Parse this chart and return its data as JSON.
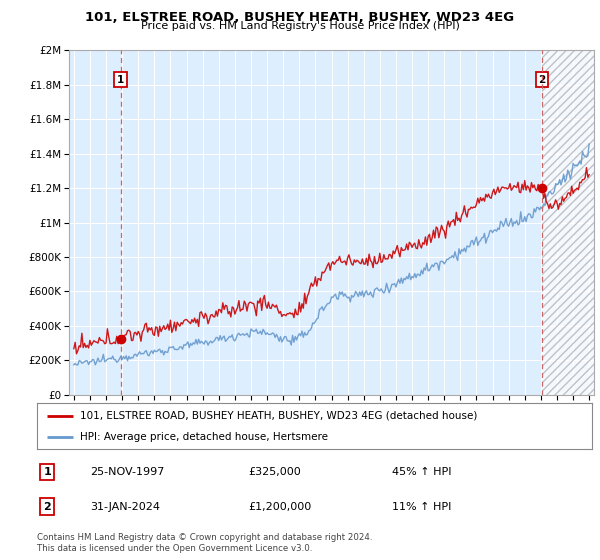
{
  "title": "101, ELSTREE ROAD, BUSHEY HEATH, BUSHEY, WD23 4EG",
  "subtitle": "Price paid vs. HM Land Registry's House Price Index (HPI)",
  "legend_line1": "101, ELSTREE ROAD, BUSHEY HEATH, BUSHEY, WD23 4EG (detached house)",
  "legend_line2": "HPI: Average price, detached house, Hertsmere",
  "annotation1_label": "1",
  "annotation1_date": "25-NOV-1997",
  "annotation1_price": "£325,000",
  "annotation1_hpi": "45% ↑ HPI",
  "annotation2_label": "2",
  "annotation2_date": "31-JAN-2024",
  "annotation2_price": "£1,200,000",
  "annotation2_hpi": "11% ↑ HPI",
  "footer": "Contains HM Land Registry data © Crown copyright and database right 2024.\nThis data is licensed under the Open Government Licence v3.0.",
  "price_color": "#cc0000",
  "hpi_color": "#6699cc",
  "chart_bg_color": "#ddeeff",
  "annotation_dot_color": "#cc0000",
  "vline_color": "#cc6666",
  "background_color": "#ffffff",
  "grid_color": "#ffffff",
  "ylim": [
    0,
    2000000
  ],
  "xlim_start": 1994.7,
  "xlim_end": 2027.3,
  "sale1_year": 1997.9,
  "sale1_price": 325000,
  "sale2_year": 2024.08,
  "sale2_price": 1200000
}
